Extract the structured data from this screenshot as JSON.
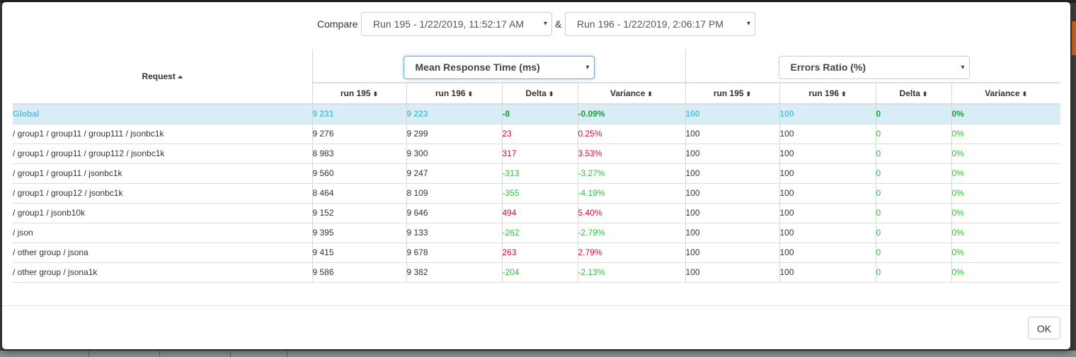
{
  "compare": {
    "label": "Compare",
    "amp": "&",
    "run_a": "Run 195 - 1/22/2019, 11:52:17 AM",
    "run_b": "Run 196 - 1/22/2019, 2:06:17 PM",
    "caret": "▾"
  },
  "groups": {
    "left_metric": "Mean Response Time (ms)",
    "right_metric": "Errors Ratio (%)"
  },
  "headers": {
    "request": "Request",
    "run_a": "run 195",
    "run_b": "run 196",
    "delta": "Delta",
    "variance": "Variance",
    "sort_asc": "⏶",
    "sort_both": "⬍"
  },
  "rows": [
    {
      "request": "Global",
      "a": "9 231",
      "b": "9 223",
      "delta": "-8",
      "variance": "-0.09%",
      "ea": "100",
      "eb": "100",
      "edelta": "0",
      "evariance": "0%"
    },
    {
      "request": "/ group1 / group11 / group111 / jsonbc1k",
      "a": "9 276",
      "b": "9 299",
      "delta": "23",
      "variance": "0.25%",
      "ea": "100",
      "eb": "100",
      "edelta": "0",
      "evariance": "0%"
    },
    {
      "request": "/ group1 / group11 / group112 / jsonbc1k",
      "a": "8 983",
      "b": "9 300",
      "delta": "317",
      "variance": "3.53%",
      "ea": "100",
      "eb": "100",
      "edelta": "0",
      "evariance": "0%"
    },
    {
      "request": "/ group1 / group11 / jsonbc1k",
      "a": "9 560",
      "b": "9 247",
      "delta": "-313",
      "variance": "-3.27%",
      "ea": "100",
      "eb": "100",
      "edelta": "0",
      "evariance": "0%"
    },
    {
      "request": "/ group1 / group12 / jsonbc1k",
      "a": "8 464",
      "b": "8 109",
      "delta": "-355",
      "variance": "-4.19%",
      "ea": "100",
      "eb": "100",
      "edelta": "0",
      "evariance": "0%"
    },
    {
      "request": "/ group1 / jsonb10k",
      "a": "9 152",
      "b": "9 646",
      "delta": "494",
      "variance": "5.40%",
      "ea": "100",
      "eb": "100",
      "edelta": "0",
      "evariance": "0%"
    },
    {
      "request": "/ json",
      "a": "9 395",
      "b": "9 133",
      "delta": "-262",
      "variance": "-2.79%",
      "ea": "100",
      "eb": "100",
      "edelta": "0",
      "evariance": "0%"
    },
    {
      "request": "/ other group / jsona",
      "a": "9 415",
      "b": "9 678",
      "delta": "263",
      "variance": "2.79%",
      "ea": "100",
      "eb": "100",
      "edelta": "0",
      "evariance": "0%"
    },
    {
      "request": "/ other group / jsona1k",
      "a": "9 586",
      "b": "9 382",
      "delta": "-204",
      "variance": "-2.13%",
      "ea": "100",
      "eb": "100",
      "edelta": "0",
      "evariance": "0%"
    }
  ],
  "footer": {
    "ok_label": "OK"
  },
  "colors": {
    "positive_delta": "#e00b22",
    "negative_delta": "#2fbf3b",
    "global_row_bg": "#d9edf7",
    "global_text": "#5bc0de"
  }
}
